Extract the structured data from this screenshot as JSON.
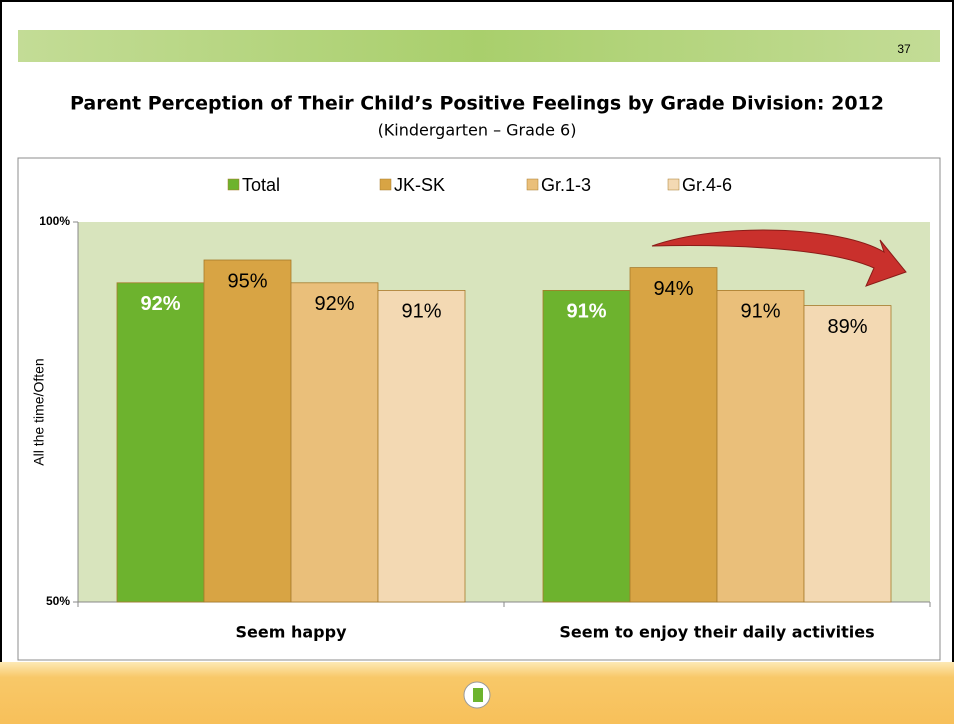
{
  "slide_number": "37",
  "chart_data": {
    "type": "bar",
    "title": "Parent Perception of Their Child’s Positive Feelings by Grade Division: 2012",
    "subtitle": "(Kindergarten – Grade 6)",
    "y_label": "All the time/Often",
    "categories": [
      "Seem happy",
      "Seem to enjoy their daily activities"
    ],
    "series": [
      {
        "name": "Total",
        "color": "#6db32e",
        "values": [
          92,
          91
        ],
        "value_labels": [
          "92%",
          "91%"
        ]
      },
      {
        "name": "JK-SK",
        "color": "#d8a444",
        "values": [
          95,
          94
        ],
        "value_labels": [
          "95%",
          "94%"
        ]
      },
      {
        "name": "Gr.1-3",
        "color": "#eabf7a",
        "values": [
          92,
          91
        ],
        "value_labels": [
          "92%",
          "91%"
        ]
      },
      {
        "name": "Gr.4-6",
        "color": "#f3d9b3",
        "values": [
          91,
          89
        ],
        "value_labels": [
          "91%",
          "89%"
        ]
      }
    ],
    "ylim": [
      50,
      100
    ],
    "yticks": [
      {
        "value": 50,
        "label": "50%"
      },
      {
        "value": 100,
        "label": "100%"
      }
    ],
    "legend": "top"
  }
}
